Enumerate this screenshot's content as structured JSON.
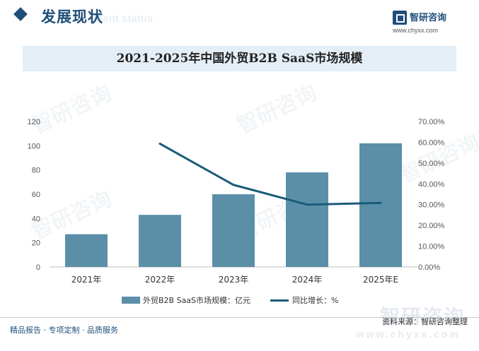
{
  "header": {
    "section_title": "发展现状",
    "section_subtitle": "ment status",
    "brand_name": "智研咨询",
    "brand_url": "www.chyxx.com"
  },
  "chart_data": {
    "type": "bar",
    "title": "2021-2025年中国外贸B2B SaaS市场规模",
    "categories": [
      "2021年",
      "2022年",
      "2023年",
      "2024年",
      "2025年E"
    ],
    "series": [
      {
        "name": "外贸B2B SaaS市场规模：亿元",
        "type": "bar",
        "axis": "left",
        "values": [
          27,
          43,
          60,
          78,
          102
        ]
      },
      {
        "name": "同比增长：%",
        "type": "line",
        "axis": "right",
        "values": [
          null,
          59.3,
          39.5,
          30.0,
          30.8
        ]
      }
    ],
    "y_left": {
      "ylim": [
        0,
        120
      ],
      "ticks": [
        "0",
        "20",
        "40",
        "60",
        "80",
        "100",
        "120"
      ]
    },
    "y_right": {
      "ylim": [
        0,
        70
      ],
      "ticks": [
        "0.00%",
        "10.00%",
        "20.00%",
        "30.00%",
        "40.00%",
        "50.00%",
        "60.00%",
        "70.00%"
      ]
    },
    "legend_position": "bottom",
    "grid": false,
    "colors": {
      "bar": "#5b8fa8",
      "line": "#1a5b78"
    }
  },
  "watermark": {
    "text": "智研咨询"
  },
  "footer": {
    "left": "精品报告 · 专项定制 · 品质服务",
    "right": "资料来源：智研咨询整理",
    "brand_watermark": "智研咨询",
    "url_watermark": "www.chyxx.com"
  }
}
